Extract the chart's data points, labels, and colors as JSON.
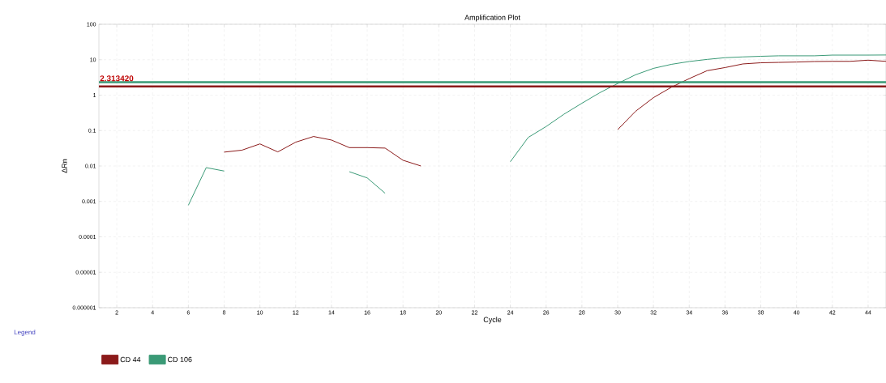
{
  "chart_data": {
    "type": "line",
    "title": "Amplification Plot",
    "xlabel": "Cycle",
    "ylabel": "ΔRn",
    "legend_title": "Legend",
    "x": [
      6,
      7,
      8,
      9,
      10,
      11,
      12,
      13,
      14,
      15,
      16,
      17,
      18,
      19,
      20,
      21,
      22,
      23,
      24,
      25,
      26,
      27,
      28,
      29,
      30,
      31,
      32,
      33,
      34,
      35,
      36,
      37,
      38,
      39,
      40,
      41,
      42,
      43,
      44,
      45
    ],
    "series": [
      {
        "name": "CD 44",
        "color": "#8b1a1a",
        "values": [
          null,
          null,
          0.0246,
          0.028,
          0.042,
          0.025,
          0.047,
          0.068,
          0.054,
          0.033,
          0.033,
          0.032,
          0.0145,
          0.01,
          null,
          null,
          null,
          null,
          null,
          null,
          null,
          null,
          null,
          null,
          0.106,
          0.35,
          0.85,
          1.67,
          2.93,
          4.9,
          6.0,
          7.6,
          8.2,
          8.4,
          8.6,
          8.9,
          9.0,
          9.0,
          9.7,
          9.0
        ]
      },
      {
        "name": "CD 106",
        "color": "#3a9a76",
        "values": [
          0.00078,
          0.009,
          0.0072,
          null,
          null,
          null,
          null,
          null,
          null,
          0.0069,
          0.0046,
          0.0017,
          null,
          null,
          null,
          null,
          null,
          null,
          0.0132,
          0.064,
          0.13,
          0.29,
          0.59,
          1.17,
          2.13,
          3.76,
          5.7,
          7.4,
          8.9,
          10.2,
          11.4,
          12,
          12.5,
          12.9,
          12.9,
          12.9,
          13.5,
          13.5,
          13.5,
          13.6
        ]
      }
    ],
    "ref_lines": [
      {
        "axis": "y",
        "value": 2.31342,
        "label": "2.313420",
        "color": "#3a9a76"
      },
      {
        "axis": "y",
        "value": 1.75,
        "label": null,
        "color": "#8b1a1a"
      }
    ],
    "log": "y",
    "xlim": [
      1,
      45
    ],
    "ylim": [
      1e-06,
      100
    ],
    "xticks": [
      2,
      4,
      6,
      8,
      10,
      12,
      14,
      16,
      18,
      20,
      22,
      24,
      26,
      28,
      30,
      32,
      34,
      36,
      38,
      40,
      42,
      44
    ],
    "yticks": [
      {
        "value": 1e-06,
        "label": "0.000001"
      },
      {
        "value": 1e-05,
        "label": "0.00001"
      },
      0.0001,
      0.001,
      0.01,
      0.1,
      1,
      10,
      100
    ],
    "grid": true,
    "legend": "bottom",
    "marker": "none",
    "line_style": "solid"
  }
}
